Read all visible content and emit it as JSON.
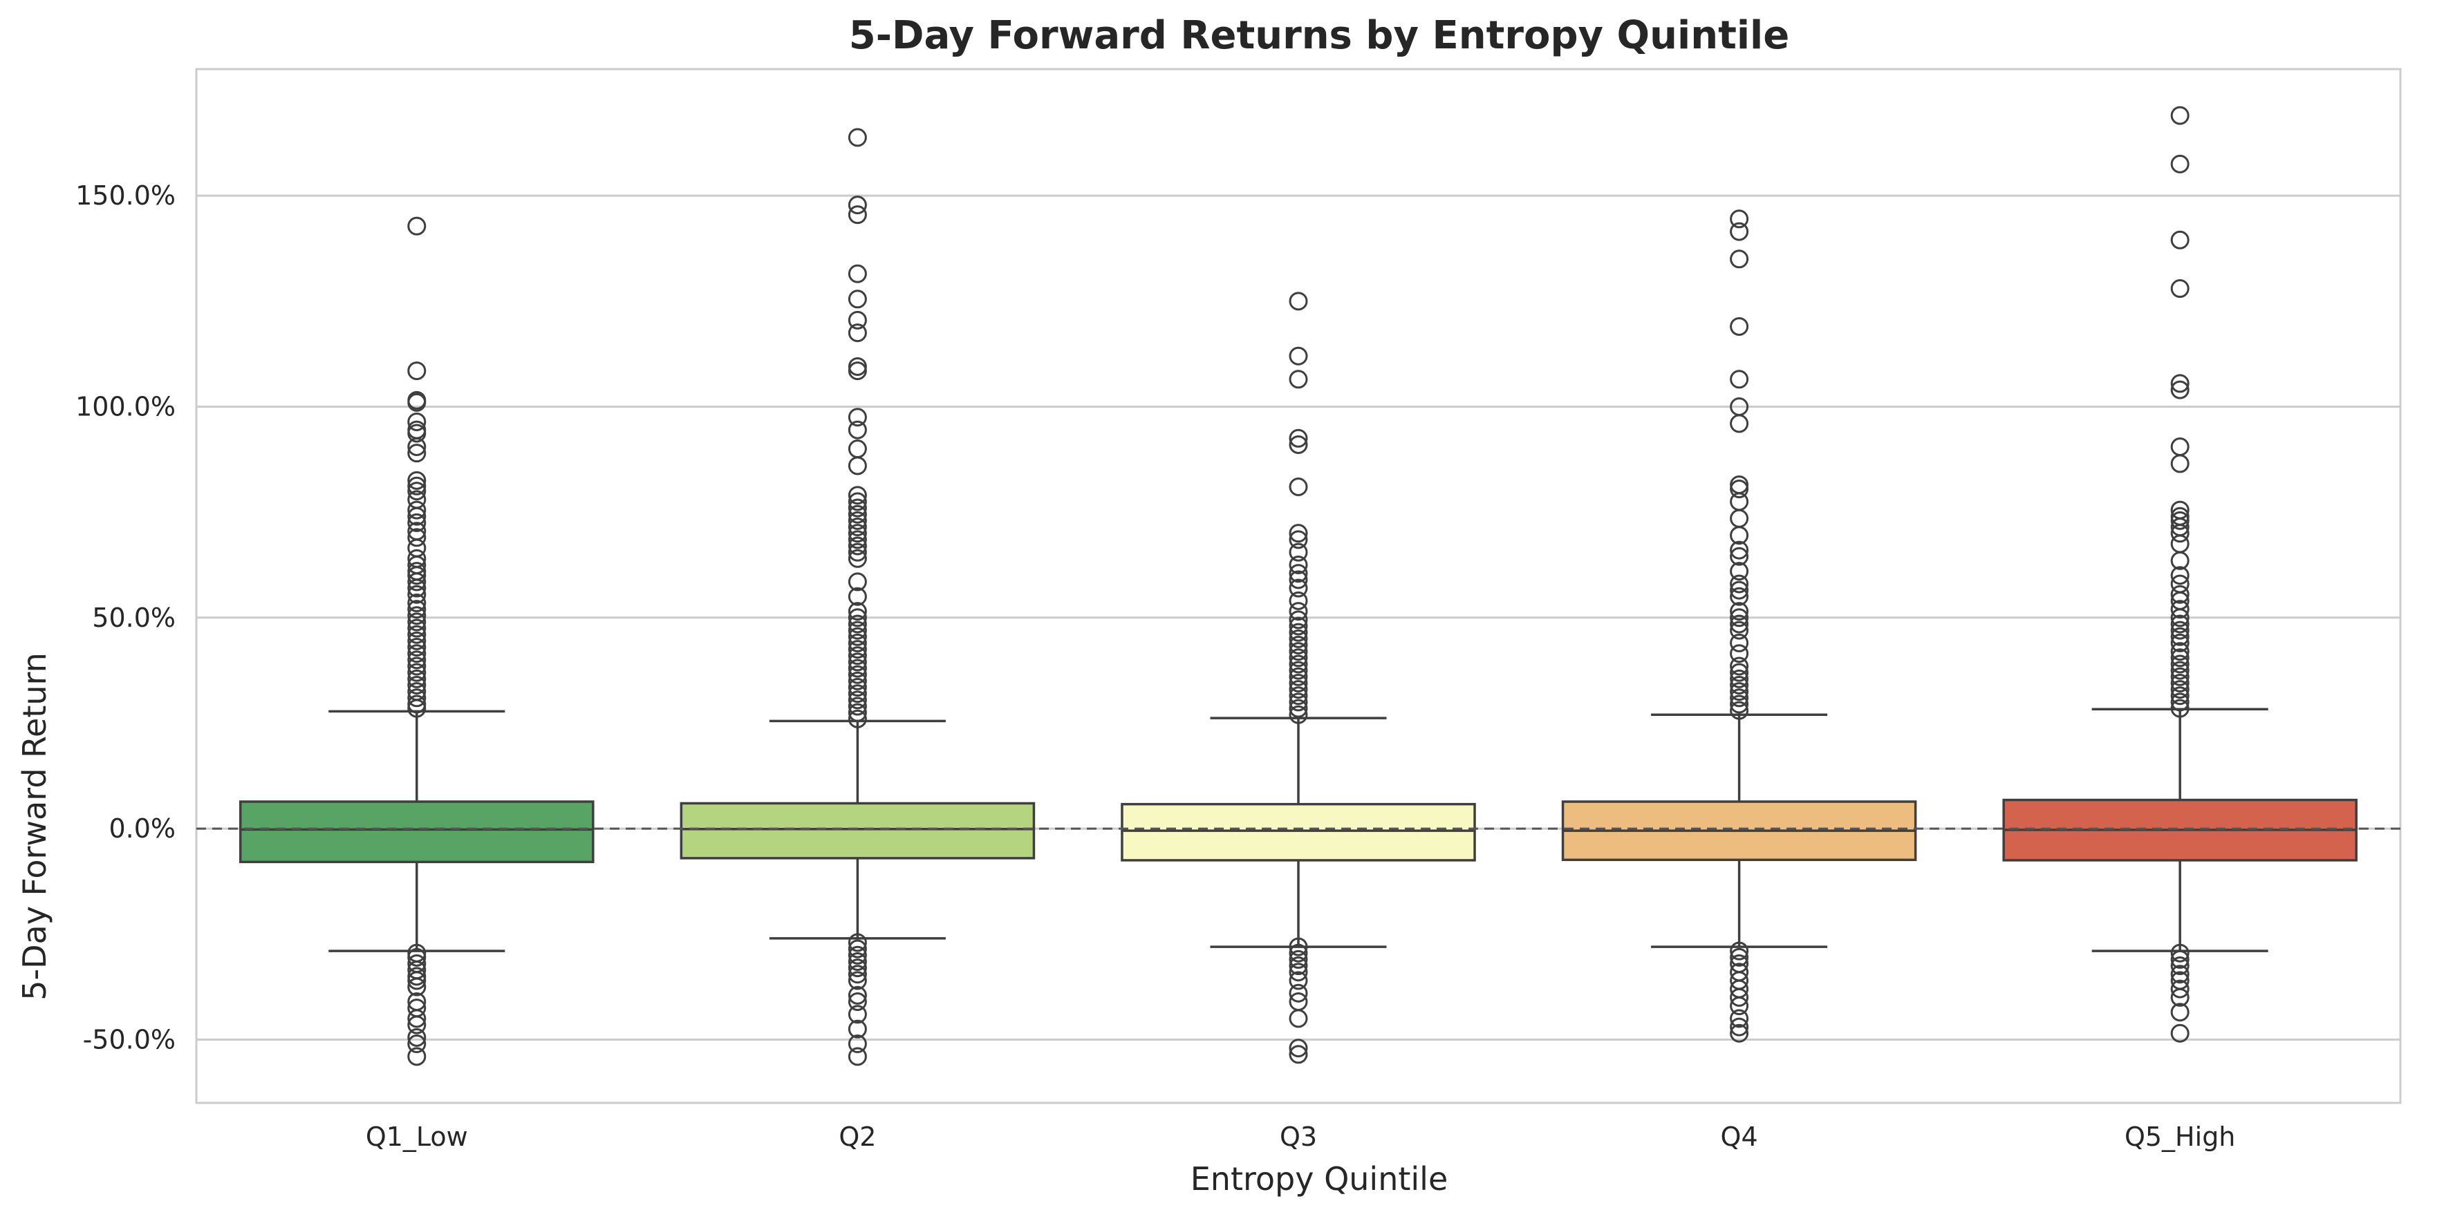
{
  "chart_data": {
    "type": "box",
    "title": "5-Day Forward Returns by Entropy Quintile",
    "xlabel": "Entropy Quintile",
    "ylabel": "5-Day Forward Return",
    "ylim": [
      -65,
      180
    ],
    "yticks": [
      -50,
      0,
      50,
      100,
      150
    ],
    "ytick_labels": [
      "-50.0%",
      "0.0%",
      "50.0%",
      "100.0%",
      "150.0%"
    ],
    "grid": true,
    "reference_line": {
      "y": 0,
      "style": "dashed"
    },
    "categories": [
      "Q1_Low",
      "Q2",
      "Q3",
      "Q4",
      "Q5_High"
    ],
    "colors": [
      "#57a465",
      "#b4d47f",
      "#f8f8c2",
      "#ecbd7e",
      "#d3634c"
    ],
    "boxes": [
      {
        "name": "Q1_Low",
        "whisker_low": -29,
        "q1": -7.9,
        "median": -0.2,
        "q3": 6.4,
        "whisker_high": 27.8,
        "outliers": [
          142.8,
          108.5,
          101.5,
          101,
          96.4,
          94.5,
          93.7,
          90.5,
          89,
          82.5,
          81.2,
          80,
          78,
          75.5,
          74,
          72.5,
          70.5,
          69,
          66.5,
          64,
          62.5,
          61,
          60,
          58.5,
          57,
          55.5,
          53.5,
          52,
          50.5,
          49,
          47.5,
          46,
          44.5,
          43,
          41.5,
          40,
          38.5,
          37,
          35.5,
          34,
          32.5,
          31,
          29.5,
          28.5,
          -29.5,
          -30.5,
          -32,
          -33.5,
          -35,
          -36,
          -37.5,
          -41,
          -42.5,
          -45,
          -46.5,
          -49.5,
          -51,
          -54
        ]
      },
      {
        "name": "Q2",
        "whisker_low": -26,
        "q1": -7.0,
        "median": -0.1,
        "q3": 6.0,
        "whisker_high": 25.5,
        "outliers": [
          163.8,
          147.8,
          145.5,
          131.5,
          125.5,
          120.5,
          117.5,
          109.5,
          108.5,
          97.5,
          94.5,
          90,
          86,
          79,
          77.5,
          76,
          74.5,
          73,
          71.5,
          70,
          68.5,
          67,
          65.5,
          64,
          58.5,
          55,
          51.5,
          50,
          48.5,
          47,
          45.5,
          44,
          42.5,
          41,
          39.5,
          38,
          36.5,
          35,
          33.5,
          32,
          30.5,
          29,
          27.5,
          26,
          -27,
          -28.5,
          -30,
          -31.5,
          -33,
          -34.5,
          -36,
          -39.5,
          -41,
          -44,
          -47.5,
          -51,
          -54
        ]
      },
      {
        "name": "Q3",
        "whisker_low": -28,
        "q1": -7.5,
        "median": -0.5,
        "q3": 5.8,
        "whisker_high": 26.2,
        "outliers": [
          125,
          112,
          106.5,
          92.5,
          91,
          81,
          70,
          68.5,
          65.5,
          62.5,
          60.5,
          59,
          57,
          54,
          51.5,
          49.5,
          48,
          46.5,
          45,
          43.5,
          42,
          40.5,
          39,
          37.5,
          36,
          34.5,
          33,
          31.5,
          30,
          28.5,
          27,
          -28,
          -29.5,
          -31,
          -32.5,
          -34,
          -36,
          -39,
          -41,
          -45,
          -52,
          -53.5
        ]
      },
      {
        "name": "Q4",
        "whisker_low": -28,
        "q1": -7.4,
        "median": -0.5,
        "q3": 6.4,
        "whisker_high": 27,
        "outliers": [
          144.5,
          141.5,
          135,
          119,
          106.5,
          100,
          96,
          81.5,
          80.5,
          77.5,
          73.5,
          69.5,
          66,
          64.5,
          61,
          58,
          56.5,
          55,
          51.5,
          50,
          48.5,
          47,
          44,
          41.5,
          38.5,
          37,
          35.5,
          34,
          32.5,
          31,
          29.5,
          28,
          -29,
          -30.5,
          -32,
          -34,
          -36,
          -38,
          -40,
          -42,
          -45,
          -47,
          -48.5
        ]
      },
      {
        "name": "Q5_High",
        "whisker_low": -29,
        "q1": -7.5,
        "median": -0.3,
        "q3": 6.8,
        "whisker_high": 28.3,
        "outliers": [
          169,
          157.5,
          139.5,
          128,
          105.5,
          104,
          90.5,
          86.5,
          75.5,
          74,
          73,
          71.5,
          70,
          67.5,
          63.5,
          60,
          58,
          55.5,
          54,
          52,
          50,
          48.5,
          47,
          45.5,
          44,
          42,
          40.5,
          39,
          37.5,
          36,
          34.5,
          33,
          31.5,
          30,
          28.5,
          -29.5,
          -31,
          -32.5,
          -34.5,
          -36,
          -38,
          -40,
          -43.5,
          -48.5
        ]
      }
    ]
  }
}
